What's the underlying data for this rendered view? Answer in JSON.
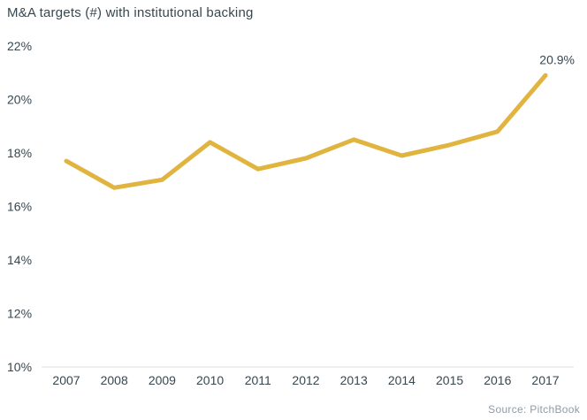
{
  "header": {
    "title": "M&A targets (#) with institutional backing"
  },
  "footer": {
    "source": "Source: PitchBook"
  },
  "colors": {
    "line": "#E0B43F",
    "text": "#374750",
    "axis_line": "#D8DDE1",
    "source_text": "#8E9BA6",
    "background": "#FFFFFF"
  },
  "chart_data": {
    "type": "line",
    "title": "M&A targets (#) with institutional backing",
    "categories": [
      "2007",
      "2008",
      "2009",
      "2010",
      "2011",
      "2012",
      "2013",
      "2014",
      "2015",
      "2016",
      "2017"
    ],
    "series": [
      {
        "name": "M&A targets (#) with institutional backing",
        "values": [
          17.7,
          16.7,
          17.0,
          18.4,
          17.4,
          17.8,
          18.5,
          17.9,
          18.3,
          18.8,
          20.9
        ]
      }
    ],
    "y_ticks": [
      "22%",
      "20%",
      "18%",
      "16%",
      "14%",
      "12%",
      "10%"
    ],
    "y_tick_values": [
      22,
      20,
      18,
      16,
      14,
      12,
      10
    ],
    "ylim": [
      10,
      22
    ],
    "end_label": "20.9%",
    "xlabel": "",
    "ylabel": "",
    "grid": false,
    "legend": false
  }
}
